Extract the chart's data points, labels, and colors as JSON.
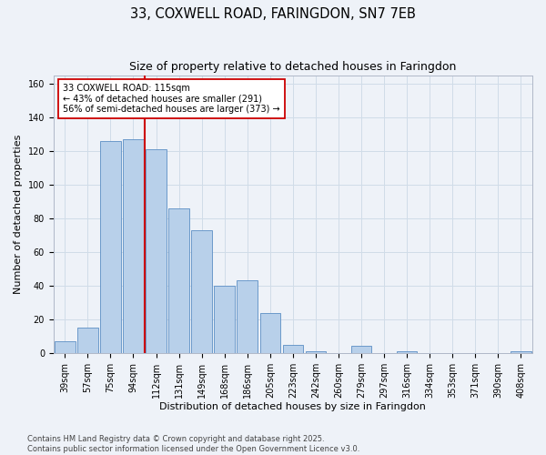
{
  "title1": "33, COXWELL ROAD, FARINGDON, SN7 7EB",
  "title2": "Size of property relative to detached houses in Faringdon",
  "xlabel": "Distribution of detached houses by size in Faringdon",
  "ylabel": "Number of detached properties",
  "categories": [
    "39sqm",
    "57sqm",
    "75sqm",
    "94sqm",
    "112sqm",
    "131sqm",
    "149sqm",
    "168sqm",
    "186sqm",
    "205sqm",
    "223sqm",
    "242sqm",
    "260sqm",
    "279sqm",
    "297sqm",
    "316sqm",
    "334sqm",
    "353sqm",
    "371sqm",
    "390sqm",
    "408sqm"
  ],
  "values": [
    7,
    15,
    126,
    127,
    121,
    86,
    73,
    40,
    43,
    24,
    5,
    1,
    0,
    4,
    0,
    1,
    0,
    0,
    0,
    0,
    1
  ],
  "bar_color": "#b8d0ea",
  "bar_edge_color": "#5b8ec4",
  "grid_color": "#d0dce8",
  "background_color": "#eef2f8",
  "red_line_x": 3.5,
  "red_line_color": "#cc0000",
  "annotation_line1": "33 COXWELL ROAD: 115sqm",
  "annotation_line2": "← 43% of detached houses are smaller (291)",
  "annotation_line3": "56% of semi-detached houses are larger (373) →",
  "annotation_box_color": "#ffffff",
  "annotation_box_edge": "#cc0000",
  "ylim": [
    0,
    165
  ],
  "yticks": [
    0,
    20,
    40,
    60,
    80,
    100,
    120,
    140,
    160
  ],
  "footer": "Contains HM Land Registry data © Crown copyright and database right 2025.\nContains public sector information licensed under the Open Government Licence v3.0.",
  "title_fontsize": 10.5,
  "subtitle_fontsize": 9,
  "axis_label_fontsize": 8,
  "tick_fontsize": 7,
  "footer_fontsize": 6
}
